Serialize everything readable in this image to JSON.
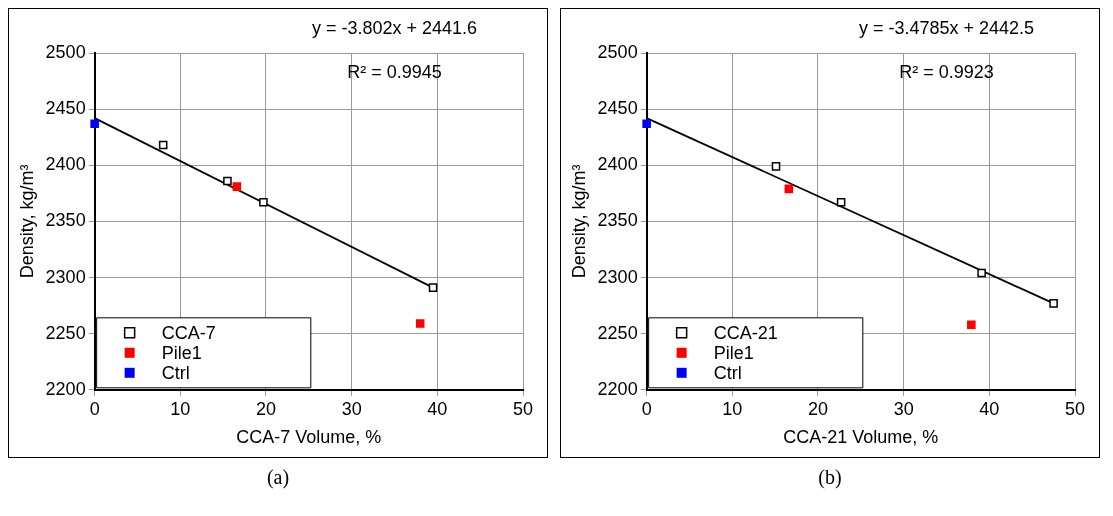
{
  "chart_data": [
    {
      "type": "scatter",
      "xlabel": "CCA-7 Volume, %",
      "ylabel": "Density, kg/m³",
      "xlim": [
        0,
        50
      ],
      "xticks": [
        0,
        10,
        20,
        30,
        40,
        50
      ],
      "ylim": [
        2200,
        2500
      ],
      "yticks": [
        2200,
        2250,
        2300,
        2350,
        2400,
        2450,
        2500
      ],
      "grid": true,
      "legend": "bottom left",
      "annotations": [
        "y = -3.802x + 2441.6",
        "R² = 0.9945",
        "(a)"
      ],
      "series": [
        {
          "name": "CCA-7",
          "color": "#000000",
          "marker": "square",
          "x": [
            8,
            15.5,
            19.7,
            39.5
          ],
          "values": [
            2418,
            2386,
            2367,
            2291
          ]
        },
        {
          "name": "Pile1",
          "color": "#ff0000",
          "marker": "square",
          "x": [
            16.6,
            38
          ],
          "values": [
            2381,
            2259
          ]
        },
        {
          "name": "Ctrl",
          "color": "#0000ff",
          "marker": "square",
          "x": [
            0
          ],
          "values": [
            2437
          ]
        },
        {
          "type": "line",
          "color": "#000000",
          "marker": "none",
          "x": [
            0,
            39.5
          ],
          "values": [
            2442,
            2291
          ]
        }
      ]
    },
    {
      "type": "scatter",
      "xlabel": "CCA-21 Volume, %",
      "ylabel": "Density, kg/m³",
      "xlim": [
        0,
        50
      ],
      "xticks": [
        0,
        10,
        20,
        30,
        40,
        50
      ],
      "ylim": [
        2200,
        2500
      ],
      "yticks": [
        2200,
        2250,
        2300,
        2350,
        2400,
        2450,
        2500
      ],
      "grid": true,
      "legend": "bottom left",
      "annotations": [
        "y = -3.4785x + 2442.5",
        "R² = 0.9923",
        "(b)"
      ],
      "series": [
        {
          "name": "CCA-21",
          "color": "#000000",
          "marker": "square",
          "x": [
            15.1,
            22.7,
            39.1,
            47.5
          ],
          "values": [
            2399,
            2367,
            2304,
            2277
          ]
        },
        {
          "name": "Pile1",
          "color": "#ff0000",
          "marker": "square",
          "x": [
            16.6,
            37.9
          ],
          "values": [
            2379,
            2258
          ]
        },
        {
          "name": "Ctrl",
          "color": "#0000ff",
          "marker": "square",
          "x": [
            0
          ],
          "values": [
            2437
          ]
        },
        {
          "type": "line",
          "color": "#000000",
          "marker": "none",
          "x": [
            0,
            47.5
          ],
          "values": [
            2442,
            2277
          ]
        }
      ]
    }
  ]
}
